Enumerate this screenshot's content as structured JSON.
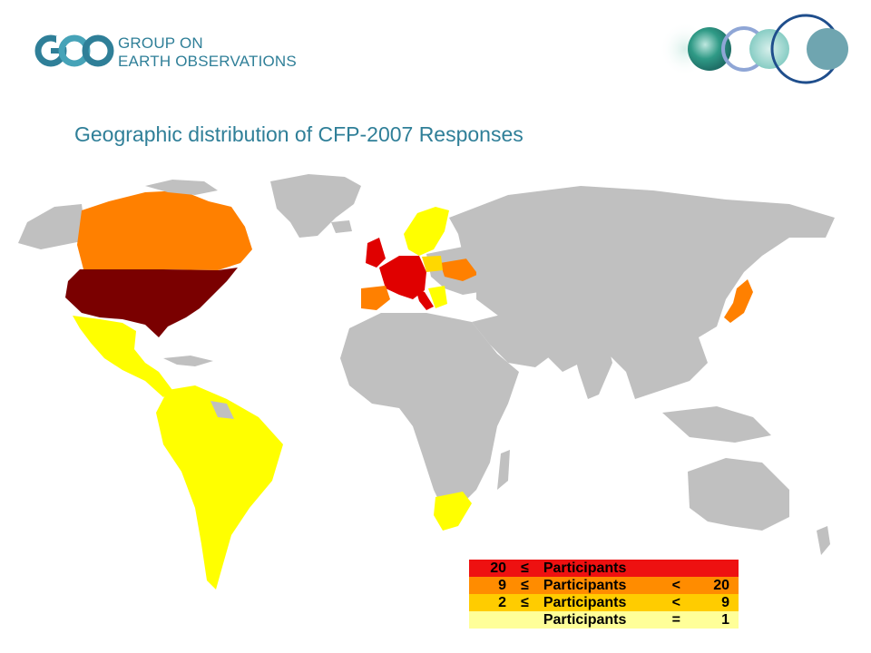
{
  "header": {
    "logo_mark_text": "GEO",
    "logo_line1": "GROUP ON",
    "logo_line2": "EARTH OBSERVATIONS"
  },
  "title": "Geographic distribution of CFP-2007 Responses",
  "colors": {
    "brand": "#2f7f98",
    "land_default": "#c0c0c0",
    "tier_top": "#7a0000",
    "tier_20_plus": "#e00000",
    "tier_9_20": "#ff8000",
    "tier_2_9": "#ffd800",
    "tier_1": "#ffff00"
  },
  "legend": [
    {
      "low": "20",
      "op1": "≤",
      "label": "Participants",
      "op2": "",
      "high": "",
      "color": "#ee1111"
    },
    {
      "low": "9",
      "op1": "≤",
      "label": "Participants",
      "op2": "<",
      "high": "20",
      "color": "#ff8c00"
    },
    {
      "low": "2",
      "op1": "≤",
      "label": "Participants",
      "op2": "<",
      "high": "9",
      "color": "#ffcc00"
    },
    {
      "low": "",
      "op1": "",
      "label": "Participants",
      "op2": "=",
      "high": "1",
      "color": "#ffff99"
    }
  ],
  "regions": [
    {
      "name": "United States",
      "tier": "20+ (darkest)"
    },
    {
      "name": "Europe core",
      "tier": "20+"
    },
    {
      "name": "Canada",
      "tier": "9-20"
    },
    {
      "name": "Spain",
      "tier": "9-20"
    },
    {
      "name": "Ukraine",
      "tier": "9-20"
    },
    {
      "name": "Japan",
      "tier": "9-20"
    },
    {
      "name": "Mexico & Central America",
      "tier": "1"
    },
    {
      "name": "South America",
      "tier": "1"
    },
    {
      "name": "South Africa",
      "tier": "1"
    },
    {
      "name": "Scandinavia",
      "tier": "1"
    }
  ]
}
